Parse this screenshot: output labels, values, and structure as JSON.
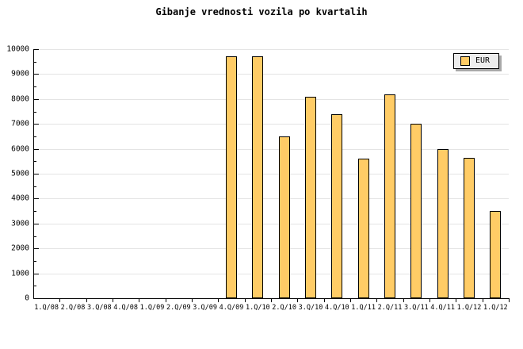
{
  "chart_data": {
    "type": "bar",
    "title": "Gibanje vrednosti vozila po kvartalih",
    "categories": [
      "1.Q/08",
      "2.Q/08",
      "3.Q/08",
      "4.Q/08",
      "1.Q/09",
      "2.Q/09",
      "3.Q/09",
      "4.Q/09",
      "1.Q/10",
      "2.Q/10",
      "3.Q/10",
      "4.Q/10",
      "1.Q/11",
      "2.Q/11",
      "3.Q/11",
      "4.Q/11",
      "1.Q/12",
      "1.Q/12"
    ],
    "series": [
      {
        "name": "EUR",
        "values": [
          null,
          null,
          null,
          null,
          null,
          null,
          null,
          9700,
          9700,
          6500,
          8100,
          7400,
          5600,
          8200,
          7000,
          6000,
          5650,
          3500
        ]
      }
    ],
    "ylim": [
      0,
      10000
    ],
    "ytick_step": 1000,
    "y_minor_tick_step": 500,
    "ytick_labels": [
      "0",
      "1000",
      "2000",
      "3000",
      "4000",
      "5000",
      "6000",
      "7000",
      "8000",
      "9000",
      "10000"
    ],
    "grid": true,
    "legend_position": "top-right",
    "bar_color": "#FFCC66",
    "bar_border_color": "#000000",
    "gridline_color": "#E4E4E4",
    "axis_color": "#000000",
    "background_color": "#FFFFFF"
  }
}
